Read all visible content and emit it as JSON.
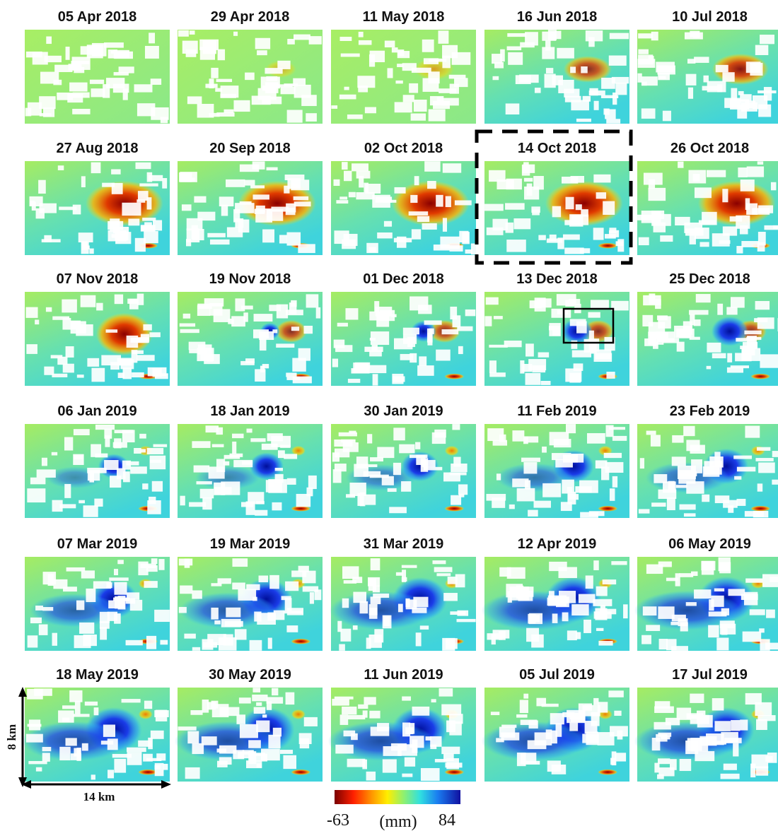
{
  "panels": [
    {
      "title": "05 Apr 2018"
    },
    {
      "title": "29 Apr 2018"
    },
    {
      "title": "11 May 2018"
    },
    {
      "title": "16 Jun 2018"
    },
    {
      "title": "10 Jul 2018"
    },
    {
      "title": "27 Aug 2018"
    },
    {
      "title": "20 Sep 2018"
    },
    {
      "title": "02 Oct 2018"
    },
    {
      "title": "14 Oct 2018"
    },
    {
      "title": "26 Oct 2018"
    },
    {
      "title": "07 Nov 2018"
    },
    {
      "title": "19 Nov 2018"
    },
    {
      "title": "01 Dec 2018"
    },
    {
      "title": "13 Dec 2018"
    },
    {
      "title": "25 Dec 2018"
    },
    {
      "title": "06 Jan 2019"
    },
    {
      "title": "18 Jan 2019"
    },
    {
      "title": "30 Jan 2019"
    },
    {
      "title": "11 Feb 2019"
    },
    {
      "title": "23 Feb 2019"
    },
    {
      "title": "07 Mar 2019"
    },
    {
      "title": "19 Mar 2019"
    },
    {
      "title": "31 Mar 2019"
    },
    {
      "title": "12 Apr 2019"
    },
    {
      "title": "06 May 2019"
    },
    {
      "title": "18 May 2019"
    },
    {
      "title": "30 May 2019"
    },
    {
      "title": "11 Jun 2019"
    },
    {
      "title": "05 Jul 2019"
    },
    {
      "title": "17 Jul 2019"
    }
  ],
  "scale": {
    "height_label": "8 km",
    "width_label": "14 km"
  },
  "colorbar": {
    "min": -63,
    "unit": "(mm)",
    "max": 84
  }
}
